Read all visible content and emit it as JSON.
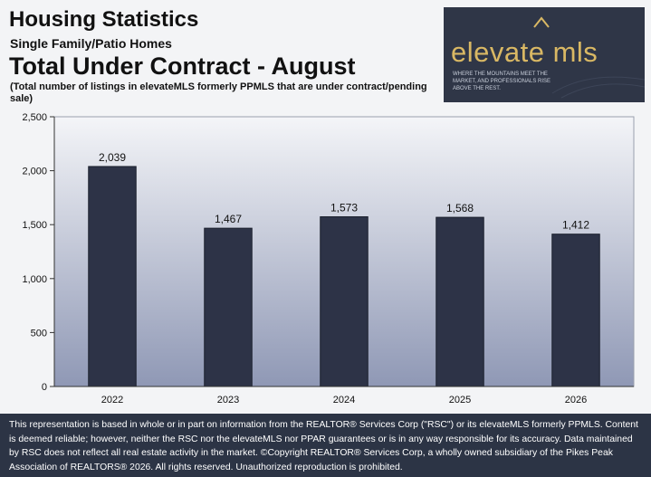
{
  "header": {
    "title": "Housing Statistics",
    "subtitle": "Single Family/Patio Homes",
    "heading": "Total Under Contract - August",
    "note": "(Total number of listings in elevateMLS formerly PPMLS that are under contract/pending sale)"
  },
  "logo": {
    "name": "elevate mls",
    "tagline": "WHERE THE MOUNTAINS MEET THE MARKET, AND PROFESSIONALS RISE ABOVE THE REST."
  },
  "colors": {
    "bar": "#2d3347",
    "logo_bg": "#2f3647",
    "logo_accent": "#d9b864",
    "footer_bg": "#2c3445",
    "plot_top": "#f4f5f8",
    "plot_bottom": "#8f98b5"
  },
  "chart_data": {
    "type": "bar",
    "title": "",
    "xlabel": "",
    "ylabel": "",
    "categories": [
      "2022",
      "2023",
      "2024",
      "2025",
      "2026"
    ],
    "values": [
      2039,
      1467,
      1573,
      1568,
      1412
    ],
    "value_labels": [
      "2,039",
      "1,467",
      "1,573",
      "1,568",
      "1,412"
    ],
    "ylim": [
      0,
      2500
    ],
    "yticks": [
      0,
      500,
      1000,
      1500,
      2000,
      2500
    ],
    "ytick_labels": [
      "0",
      "500",
      "1,000",
      "1,500",
      "2,000",
      "2,500"
    ],
    "grid": false,
    "legend": "none"
  },
  "footer": {
    "text": "This representation is based in whole or in part on information from the REALTOR® Services Corp (\"RSC\") or its elevateMLS formerly PPMLS. Content is deemed reliable; however, neither the RSC nor the elevateMLS nor PPAR guarantees or is in any way responsible for its accuracy. Data maintained by RSC does not reflect all real estate activity in the market. ©Copyright REALTOR® Services Corp, a wholly owned subsidiary of the Pikes Peak Association of REALTORS® 2026. All rights reserved. Unauthorized reproduction is prohibited."
  }
}
